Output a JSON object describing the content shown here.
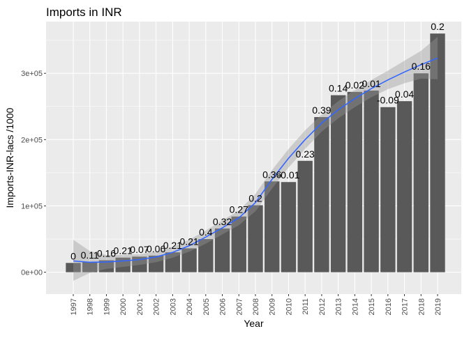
{
  "chart_data": {
    "type": "bar",
    "title": "Imports in INR",
    "xlabel": "Year",
    "ylabel": "Imports-INR-lacs /1000",
    "categories": [
      "1997",
      "1998",
      "1999",
      "2000",
      "2001",
      "2002",
      "2003",
      "2004",
      "2005",
      "2006",
      "2007",
      "2008",
      "2009",
      "2010",
      "2011",
      "2012",
      "2013",
      "2014",
      "2015",
      "2016",
      "2017",
      "2018",
      "2019"
    ],
    "values": [
      14000,
      15500,
      18000,
      22000,
      23500,
      25000,
      30000,
      36000,
      50000,
      66000,
      84000,
      101000,
      137000,
      136000,
      168000,
      234000,
      267000,
      272000,
      274000,
      249000,
      258000,
      300000,
      360000
    ],
    "data_labels": [
      "0",
      "0.11",
      "0.16",
      "0.21",
      "0.07",
      "0.06",
      "0.21",
      "0.21",
      "0.4",
      "0.32",
      "0.27",
      "0.2",
      "0.36",
      "-0.01",
      "0.23",
      "0.39",
      "0.14",
      "0.02",
      "0.01",
      "-0.09",
      "0.04",
      "0.16",
      "0.2"
    ],
    "y_ticks": [
      0,
      100000,
      200000,
      300000
    ],
    "y_tick_labels": [
      "0e+00",
      "1e+05",
      "2e+05",
      "3e+05"
    ],
    "ylim": [
      -33000,
      378000
    ],
    "smooth": {
      "type": "loess",
      "color": "#3366ff",
      "values": [
        17000,
        15000,
        15500,
        17000,
        19000,
        23000,
        30000,
        40000,
        53000,
        67000,
        82000,
        105000,
        140000,
        172000,
        200000,
        225000,
        245000,
        262000,
        277000,
        290000,
        302000,
        313000,
        323000
      ],
      "band_lower": [
        -13000,
        -1000,
        5000,
        8000,
        11000,
        15000,
        22000,
        31000,
        43000,
        57000,
        71000,
        92000,
        126000,
        158000,
        186000,
        212000,
        232000,
        249000,
        264000,
        276000,
        285000,
        292000,
        291000
      ],
      "band_upper": [
        49000,
        32000,
        26000,
        26000,
        27000,
        31000,
        38000,
        49000,
        63000,
        78000,
        93000,
        118000,
        154000,
        186000,
        214000,
        238000,
        258000,
        275000,
        290000,
        304000,
        319000,
        334000,
        355000
      ]
    },
    "grid": true,
    "legend": "none",
    "colors": {
      "bar": "#595959",
      "panel": "#ebebeb",
      "grid": "#ffffff",
      "band": "#999999",
      "line": "#3366ff"
    }
  }
}
